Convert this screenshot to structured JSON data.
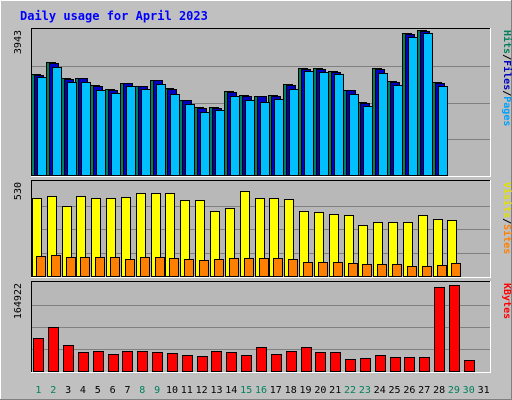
{
  "chart_data": {
    "type": "bar",
    "title": "Daily usage for April 2023",
    "categories": [
      "1",
      "2",
      "3",
      "4",
      "5",
      "6",
      "7",
      "8",
      "9",
      "10",
      "11",
      "12",
      "13",
      "14",
      "15",
      "16",
      "17",
      "18",
      "19",
      "20",
      "21",
      "22",
      "23",
      "24",
      "25",
      "26",
      "27",
      "28",
      "29",
      "30",
      "31"
    ],
    "weekend_days": [
      "1",
      "2",
      "8",
      "9",
      "15",
      "16",
      "22",
      "23",
      "29",
      "30"
    ],
    "panels": [
      {
        "id": "hits",
        "ymax_label": "3943",
        "ymax": 3943,
        "gridlines": 3,
        "axis_labels": [
          {
            "text": "Hits",
            "color": "#00805c"
          },
          {
            "text": "/",
            "color": "#000000"
          },
          {
            "text": "Files",
            "color": "#0000c0"
          },
          {
            "text": "/",
            "color": "#000000"
          },
          {
            "text": "Pages",
            "color": "#00a0ff"
          }
        ],
        "series": [
          {
            "name": "Hits",
            "color": "#00805c",
            "values": [
              2760,
              3060,
              2630,
              2650,
              2450,
              2350,
              2510,
              2430,
              2590,
              2360,
              2050,
              1840,
              1850,
              2280,
              2170,
              2160,
              2180,
              2470,
              2910,
              2910,
              2840,
              2320,
              1990,
              2900,
              2560,
              3850,
              3930,
              2520,
              0,
              0,
              0
            ]
          },
          {
            "name": "Files",
            "color": "#0000c0",
            "values": [
              2730,
              3040,
              2610,
              2630,
              2420,
              2320,
              2490,
              2410,
              2570,
              2330,
              2030,
              1820,
              1830,
              2260,
              2150,
              2140,
              2160,
              2450,
              2880,
              2880,
              2810,
              2300,
              1970,
              2870,
              2540,
              3830,
              3910,
              2500,
              0,
              0,
              0
            ]
          },
          {
            "name": "Pages",
            "color": "#00bfff",
            "values": [
              2660,
              2950,
              2530,
              2530,
              2320,
              2240,
              2410,
              2340,
              2480,
              2210,
              1930,
              1700,
              1760,
              2160,
              2030,
              1990,
              2070,
              2340,
              2820,
              2800,
              2750,
              2200,
              1880,
              2780,
              2460,
              3750,
              3870,
              2420,
              0,
              0,
              0
            ]
          }
        ]
      },
      {
        "id": "visits",
        "ymax_label": "530",
        "ymax": 530,
        "gridlines": 3,
        "axis_labels": [
          {
            "text": "Visits",
            "color": "#e0e000"
          },
          {
            "text": "/",
            "color": "#000000"
          },
          {
            "text": "Sites",
            "color": "#ff8000"
          }
        ],
        "series": [
          {
            "name": "Visits",
            "color": "#ffff00",
            "values": [
              438,
              450,
              392,
              451,
              439,
              442,
              447,
              470,
              469,
              467,
              429,
              431,
              366,
              385,
              480,
              441,
              439,
              432,
              368,
              360,
              350,
              342,
              289,
              304,
              303,
              303,
              343,
              320,
              315,
              0,
              0
            ]
          },
          {
            "name": "Sites",
            "color": "#ff8000",
            "values": [
              113,
              117,
              107,
              107,
              105,
              107,
              96,
              108,
              106,
              104,
              96,
              91,
              97,
              102,
              102,
              100,
              100,
              95,
              79,
              79,
              81,
              76,
              70,
              66,
              66,
              58,
              56,
              61,
              74,
              0,
              0
            ]
          }
        ]
      },
      {
        "id": "kbytes",
        "ymax_label": "164922",
        "ymax": 164922,
        "gridlines": 3,
        "axis_labels": [
          {
            "text": "KBytes",
            "color": "#ff0000"
          }
        ],
        "series": [
          {
            "name": "KBytes",
            "color": "#ff0000",
            "values": [
              62000,
              83000,
              49000,
              35000,
              38000,
              31000,
              37000,
              37000,
              35000,
              33000,
              30000,
              28000,
              37000,
              35000,
              30000,
              45000,
              32000,
              37000,
              45000,
              35000,
              35000,
              22000,
              24000,
              30000,
              26000,
              26000,
              26000,
              158000,
              162000,
              20000,
              0
            ]
          }
        ]
      }
    ]
  },
  "colors": {
    "background": "#c0c0c0",
    "plot": "#b8b8b8",
    "title": "#0000ff",
    "weekend_tick": "#00805c",
    "weekday_tick": "#000000"
  }
}
